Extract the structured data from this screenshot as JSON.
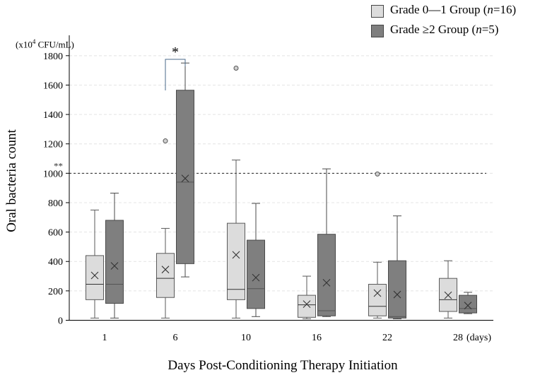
{
  "chart_data": {
    "type": "boxplot",
    "title": "",
    "ylabel": "Oral bacteria count",
    "xlabel": "Days Post-Conditioning Therapy Initiation",
    "x_unit": "(days)",
    "y_unit": {
      "prefix": "(x10",
      "exp": "4",
      "suffix": " CFU/mL)"
    },
    "ylim": [
      0,
      1900
    ],
    "y_ticks": [
      0,
      200,
      400,
      600,
      800,
      1000,
      1200,
      1400,
      1600,
      1800
    ],
    "categories": [
      "1",
      "6",
      "10",
      "16",
      "22",
      "28"
    ],
    "reference_line": {
      "value": 1000,
      "label": "**",
      "style": "dashed"
    },
    "significance": [
      {
        "category": "6",
        "label": "*"
      }
    ],
    "series": [
      {
        "name": "Grade 0—1 Group",
        "n_label": "n",
        "n_value": "=16)",
        "color": "#dcdcdc",
        "boxes": [
          {
            "min": 15,
            "q1": 140,
            "median": 245,
            "q3": 440,
            "max": 750,
            "mean": 305,
            "outliers": []
          },
          {
            "min": 15,
            "q1": 155,
            "median": 285,
            "q3": 455,
            "max": 625,
            "mean": 345,
            "outliers": [
              1220
            ]
          },
          {
            "min": 15,
            "q1": 140,
            "median": 210,
            "q3": 660,
            "max": 1090,
            "mean": 445,
            "outliers": [
              1715
            ]
          },
          {
            "min": 10,
            "q1": 20,
            "median": 105,
            "q3": 170,
            "max": 300,
            "mean": 110,
            "outliers": []
          },
          {
            "min": 15,
            "q1": 30,
            "median": 95,
            "q3": 245,
            "max": 395,
            "mean": 185,
            "outliers": [
              995
            ]
          },
          {
            "min": 15,
            "q1": 60,
            "median": 140,
            "q3": 285,
            "max": 405,
            "mean": 170,
            "outliers": []
          }
        ]
      },
      {
        "name": "Grade ≥2 Group",
        "n_label": "n",
        "n_value": "=5)",
        "color": "#7f7f7f",
        "boxes": [
          {
            "min": 15,
            "q1": 115,
            "median": 245,
            "q3": 680,
            "max": 865,
            "mean": 370,
            "outliers": []
          },
          {
            "min": 295,
            "q1": 385,
            "median": 940,
            "q3": 1565,
            "max": 1750,
            "mean": 965,
            "outliers": []
          },
          {
            "min": 25,
            "q1": 80,
            "median": 215,
            "q3": 545,
            "max": 795,
            "mean": 290,
            "outliers": []
          },
          {
            "min": 25,
            "q1": 30,
            "median": 65,
            "q3": 585,
            "max": 1030,
            "mean": 255,
            "outliers": []
          },
          {
            "min": 10,
            "q1": 15,
            "median": 25,
            "q3": 405,
            "max": 710,
            "mean": 175,
            "outliers": []
          },
          {
            "min": 45,
            "q1": 50,
            "median": 80,
            "q3": 170,
            "max": 190,
            "mean": 100,
            "outliers": []
          }
        ]
      }
    ]
  }
}
